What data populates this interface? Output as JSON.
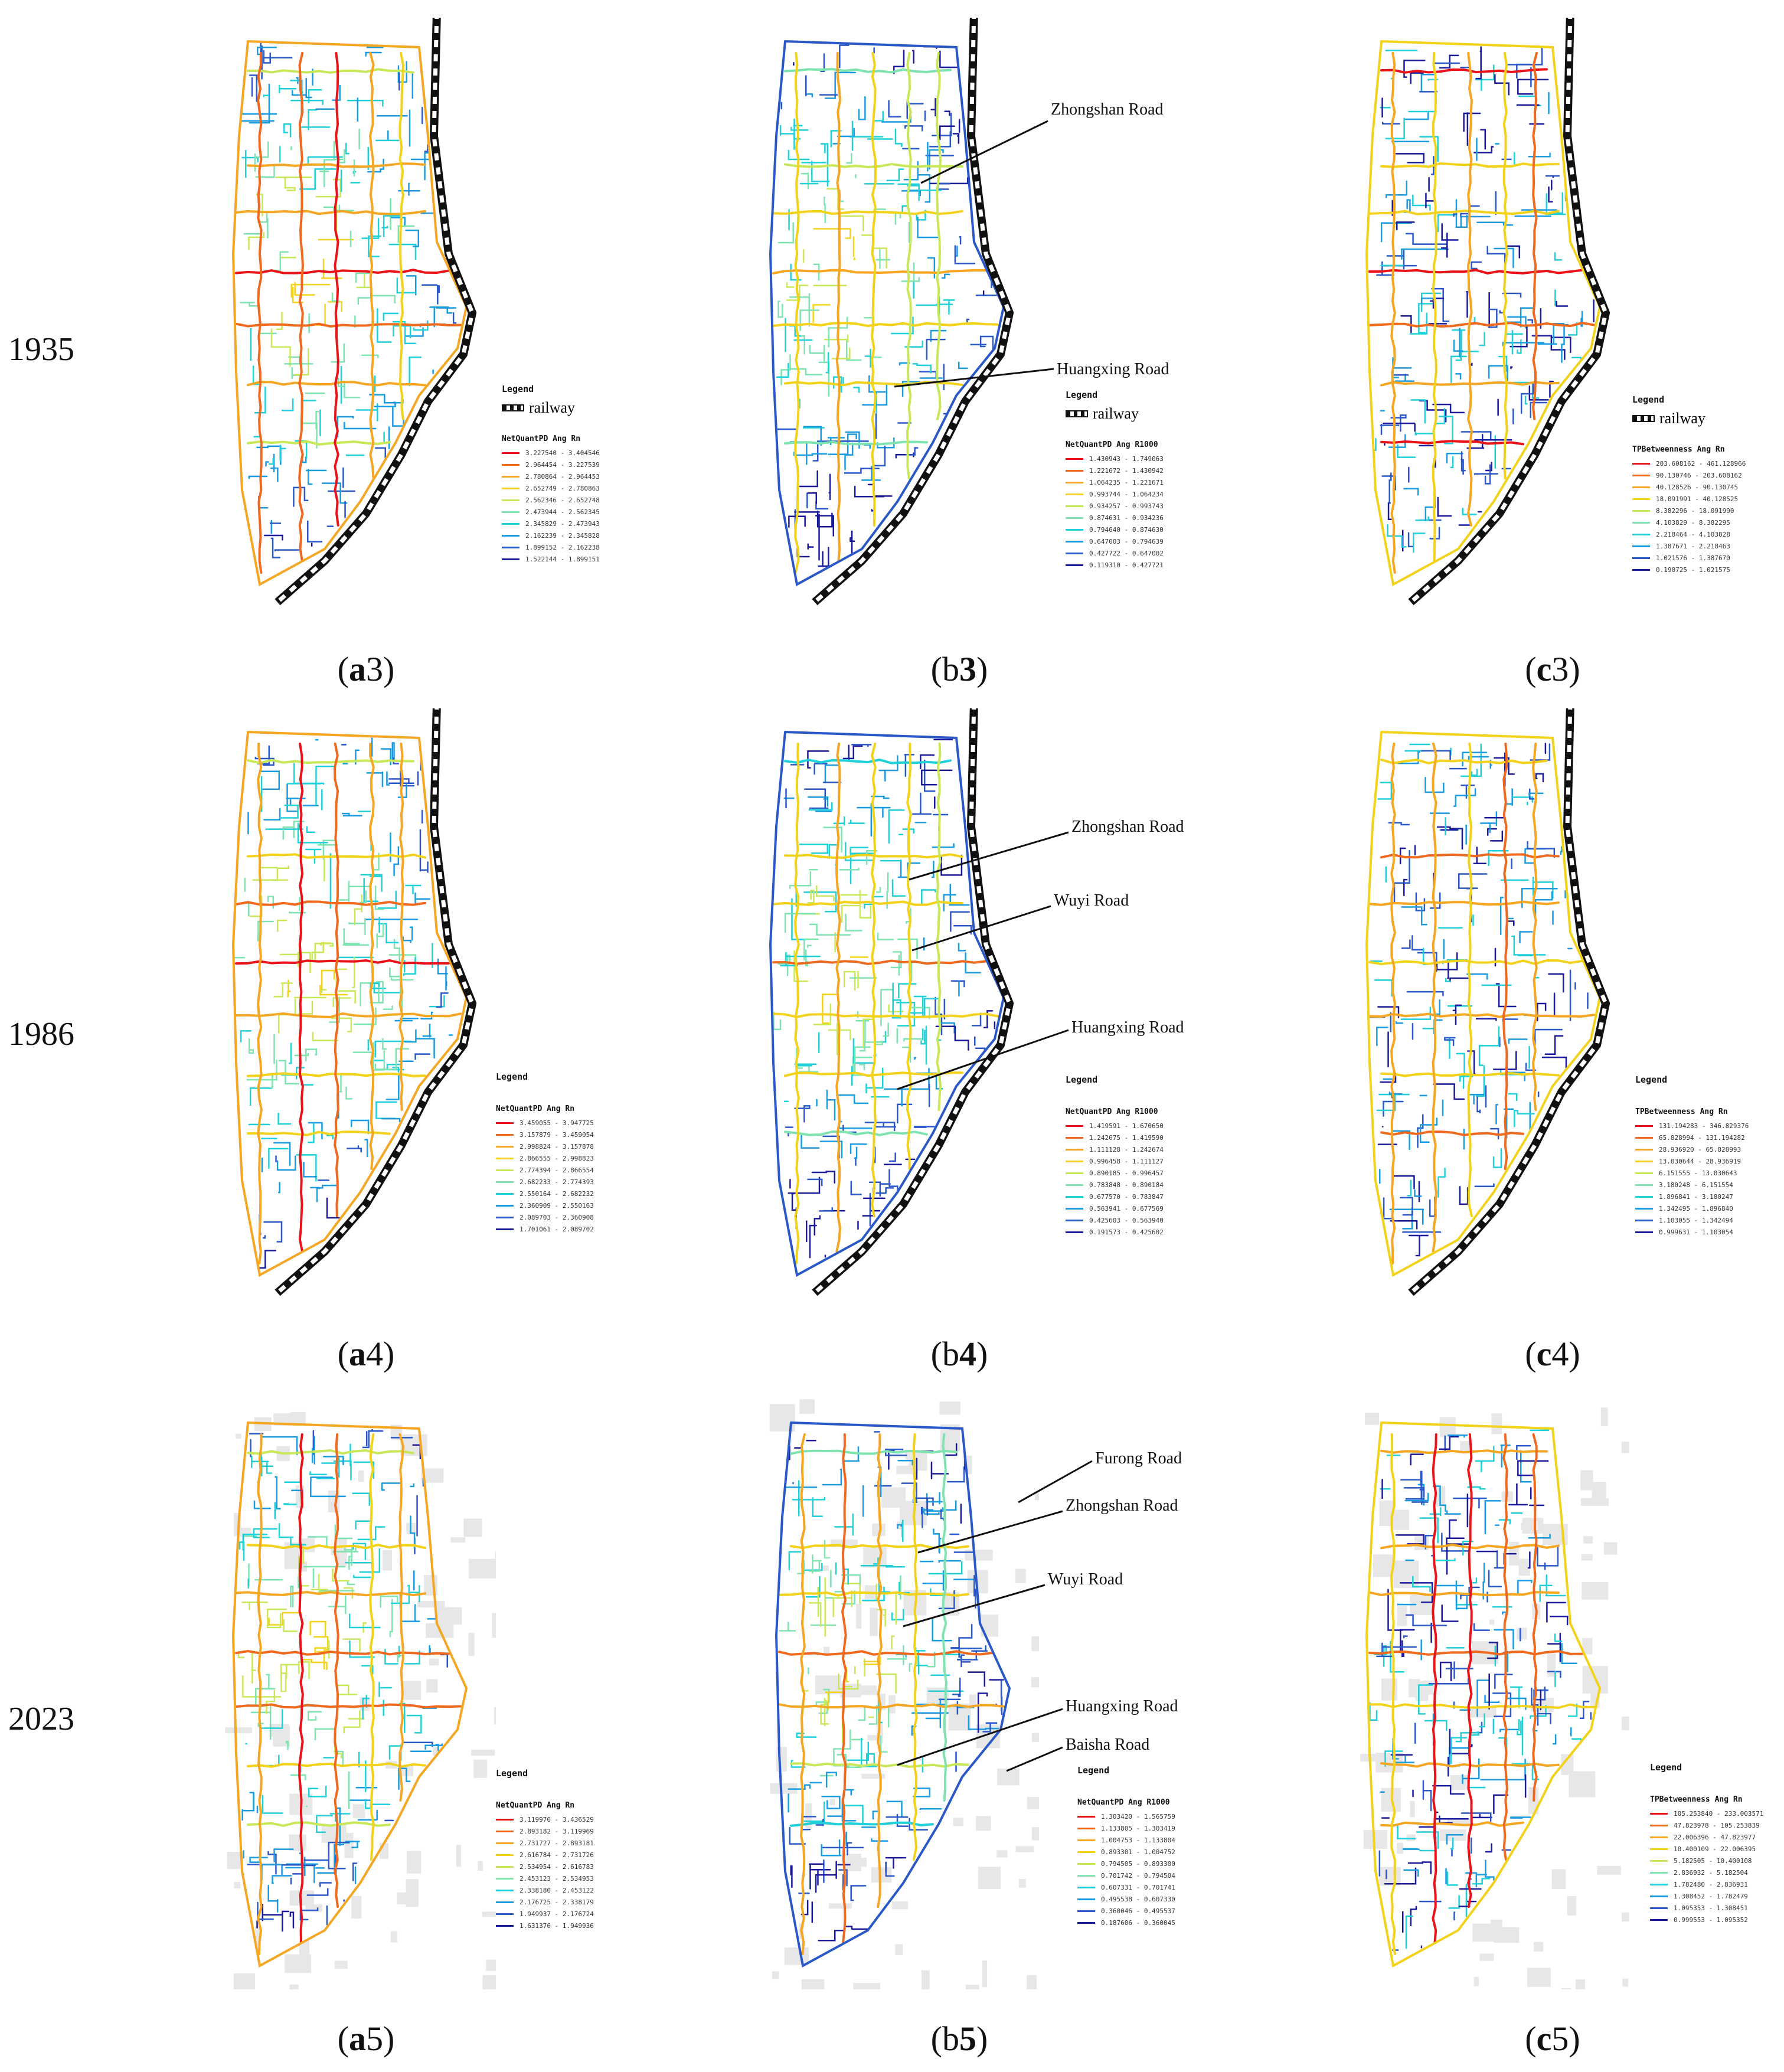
{
  "years": [
    "1935",
    "1986",
    "2023"
  ],
  "captions": {
    "a3": {
      "letter": "a",
      "num": "3"
    },
    "b3": {
      "letter": "b",
      "num": "3"
    },
    "c3": {
      "letter": "c",
      "num": "3"
    },
    "a4": {
      "letter": "a",
      "num": "4"
    },
    "b4": {
      "letter": "b",
      "num": "4"
    },
    "c4": {
      "letter": "c",
      "num": "4"
    },
    "a5": {
      "letter": "a",
      "num": "5"
    },
    "b5": {
      "letter": "b",
      "num": "5"
    },
    "c5": {
      "letter": "c",
      "num": "5"
    }
  },
  "legend_word": "Legend",
  "railway_label": "railway",
  "palette": [
    "#e8141a",
    "#ef6a1e",
    "#f5a623",
    "#f2d21b",
    "#c8e85a",
    "#7fe3b0",
    "#1fd0d8",
    "#1a9be0",
    "#2a58c8",
    "#1a1a9a"
  ],
  "legends": {
    "a3": {
      "title": "NetQuantPD Ang Rn",
      "rows": [
        "3.227540 - 3.404546",
        "2.964454 - 3.227539",
        "2.780864 - 2.964453",
        "2.652749 - 2.780863",
        "2.562346 - 2.652748",
        "2.473944 - 2.562345",
        "2.345829 - 2.473943",
        "2.162239 - 2.345828",
        "1.899152 - 2.162238",
        "1.522144 - 1.899151"
      ]
    },
    "b3": {
      "title": "NetQuantPD Ang R1000",
      "rows": [
        "1.430943 - 1.749063",
        "1.221672 - 1.430942",
        "1.064235 - 1.221671",
        "0.993744 - 1.064234",
        "0.934257 - 0.993743",
        "0.874631 - 0.934236",
        "0.794640 - 0.874630",
        "0.647003 - 0.794639",
        "0.427722 - 0.647002",
        "0.119310 - 0.427721"
      ]
    },
    "c3": {
      "title": "TPBetweenness Ang Rn",
      "rows": [
        "203.608162 - 461.128966",
        "90.130746 - 203.608162",
        "40.128526 - 90.130745",
        "18.091991 - 40.128525",
        "8.382296 - 18.091990",
        "4.103829 - 8.382295",
        "2.218464 - 4.103828",
        "1.387671 - 2.218463",
        "1.021576 - 1.387670",
        "0.190725 - 1.021575"
      ]
    },
    "a4": {
      "title": "NetQuantPD Ang Rn",
      "rows": [
        "3.459055 - 3.947725",
        "3.157879 - 3.459054",
        "2.998824 - 3.157878",
        "2.866555 - 2.998823",
        "2.774394 - 2.866554",
        "2.682233 - 2.774393",
        "2.550164 - 2.682232",
        "2.360909 - 2.550163",
        "2.089703 - 2.360908",
        "1.701061 - 2.089702"
      ]
    },
    "b4": {
      "title": "NetQuantPD Ang R1000",
      "rows": [
        "1.419591 - 1.670650",
        "1.242675 - 1.419590",
        "1.111128 - 1.242674",
        "0.996458 - 1.111127",
        "0.890185 - 0.996457",
        "0.783848 - 0.890184",
        "0.677570 - 0.783847",
        "0.563941 - 0.677569",
        "0.425603 - 0.563940",
        "0.191573 - 0.425602"
      ]
    },
    "c4": {
      "title": "TPBetweenness Ang Rn",
      "rows": [
        "131.194283 - 346.829376",
        "65.828994 - 131.194282",
        "28.936920 - 65.828993",
        "13.030644 - 28.936919",
        "6.151555 - 13.030643",
        "3.180248 - 6.151554",
        "1.896841 - 3.180247",
        "1.342495 - 1.896840",
        "1.103055 - 1.342494",
        "0.999631 - 1.103054"
      ]
    },
    "a5": {
      "title": "NetQuantPD Ang Rn",
      "rows": [
        "3.119970 - 3.436529",
        "2.893182 - 3.119969",
        "2.731727 - 2.893181",
        "2.616784 - 2.731726",
        "2.534954 - 2.616783",
        "2.453123 - 2.534953",
        "2.338180 - 2.453122",
        "2.176725 - 2.338179",
        "1.949937 - 2.176724",
        "1.631376 - 1.949936"
      ]
    },
    "b5": {
      "title": "NetQuantPD Ang R1000",
      "rows": [
        "1.303420 - 1.565759",
        "1.133805 - 1.303419",
        "1.004753 - 1.133804",
        "0.893301 - 1.004752",
        "0.794505 - 0.893300",
        "0.701742 - 0.794504",
        "0.607331 - 0.701741",
        "0.495538 - 0.607330",
        "0.360046 - 0.495537",
        "0.187606 - 0.360045"
      ]
    },
    "c5": {
      "title": "TPBetweenness Ang Rn",
      "rows": [
        "105.253840 - 233.003571",
        "47.823978 - 105.253839",
        "22.006396 - 47.823977",
        "10.400109 - 22.006395",
        "5.182505 - 10.400108",
        "2.836932 - 5.182504",
        "1.782480 - 2.836931",
        "1.308452 - 1.782479",
        "1.095353 - 1.308451",
        "0.999553 - 1.095352"
      ]
    }
  },
  "road_labels": {
    "b3": [
      "Zhongshan Road",
      "Huangxing Road"
    ],
    "b4": [
      "Zhongshan Road",
      "Wuyi Road",
      "Huangxing Road"
    ],
    "b5": [
      "Furong Road",
      "Zhongshan Road",
      "Wuyi Road",
      "Huangxing Road",
      "Baisha Road"
    ]
  }
}
